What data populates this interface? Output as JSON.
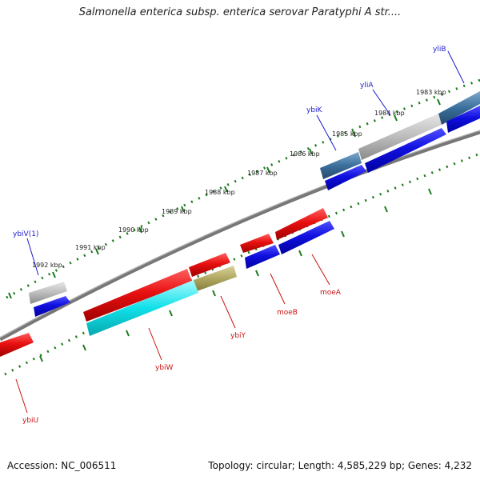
{
  "title": "Salmonella enterica subsp. enterica serovar Paratyphi A str....",
  "footer": {
    "accession": "Accession: NC_006511",
    "summary": "Topology: circular; Length: 4,585,229 bp; Genes: 4,232"
  },
  "ticks": [
    "1983 kbp",
    "1984 kbp",
    "1985 kbp",
    "1986 kbp",
    "1987 kbp",
    "1988 kbp",
    "1989 kbp",
    "1990 kbp",
    "1991 kbp",
    "1992 kbp"
  ],
  "genes": {
    "ybiB": "yliB",
    "yliA": "yliA",
    "ybiK": "ybiK",
    "ybiV": "ybiV(1)",
    "ybiU": "ybiU",
    "ybiW": "ybiW",
    "ybiY": "ybiY",
    "moeB": "moeB",
    "moeA": "moeA"
  },
  "colors": {
    "backbone": "#777777",
    "forward_gene": "#1010d8",
    "reverse_gene": "#e01010",
    "pseudo_gene": "#aaaaaa",
    "steel_gene": "#3a6f9c",
    "cyan_gene": "#10e0e8",
    "olive_gene": "#b0a860",
    "tick_green": "#1a7a1a"
  }
}
